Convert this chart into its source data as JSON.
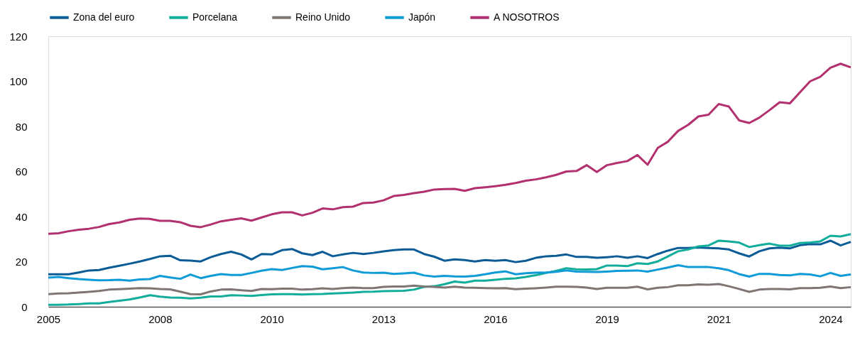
{
  "chart_data": {
    "type": "line",
    "categories": [
      "2005",
      null,
      null,
      null,
      null,
      null,
      null,
      null,
      null,
      null,
      null,
      "2008",
      null,
      null,
      null,
      null,
      null,
      null,
      null,
      null,
      null,
      null,
      "2010",
      null,
      null,
      null,
      null,
      null,
      null,
      null,
      null,
      null,
      null,
      "2013",
      null,
      null,
      null,
      null,
      null,
      null,
      null,
      null,
      null,
      null,
      "2016",
      null,
      null,
      null,
      null,
      null,
      null,
      null,
      null,
      null,
      null,
      "2019",
      null,
      null,
      null,
      null,
      null,
      null,
      null,
      null,
      null,
      null,
      "2021",
      null,
      null,
      null,
      null,
      null,
      null,
      null,
      null,
      null,
      null,
      "2024",
      null,
      null
    ],
    "series": [
      {
        "name": "Zona del euro",
        "color": "#0b5c96",
        "values": [
          14.4,
          14.4,
          14.4,
          15.2,
          16.1,
          16.3,
          17.3,
          18.2,
          19.1,
          20.1,
          21.2,
          22.4,
          22.6,
          20.6,
          20.5,
          20.1,
          22.0,
          23.4,
          24.4,
          23.2,
          21.0,
          23.4,
          23.2,
          25.1,
          25.6,
          23.7,
          22.9,
          24.4,
          22.4,
          23.2,
          23.9,
          23.4,
          23.9,
          24.6,
          25.1,
          25.4,
          25.4,
          23.4,
          22.2,
          20.4,
          21.0,
          20.7,
          20.1,
          20.7,
          20.4,
          20.7,
          19.8,
          20.4,
          21.7,
          22.4,
          22.6,
          23.2,
          22.1,
          22.1,
          21.7,
          22.0,
          22.4,
          21.7,
          22.4,
          21.6,
          23.4,
          24.9,
          26.1,
          26.1,
          26.3,
          26.1,
          25.9,
          25.4,
          23.7,
          22.3,
          24.6,
          25.9,
          26.2,
          25.9,
          27.3,
          27.8,
          27.7,
          29.3,
          27.2,
          28.8
        ]
      },
      {
        "name": "Porcelana",
        "color": "#12ad9b",
        "values": [
          0.9,
          0.9,
          1.0,
          1.2,
          1.5,
          1.5,
          2.1,
          2.7,
          3.2,
          4.1,
          5.1,
          4.5,
          4.1,
          4.0,
          3.7,
          4.0,
          4.6,
          4.6,
          5.1,
          5.0,
          4.8,
          5.2,
          5.5,
          5.6,
          5.6,
          5.4,
          5.6,
          5.7,
          5.9,
          6.1,
          6.3,
          6.6,
          6.7,
          6.9,
          7.0,
          7.1,
          7.6,
          8.8,
          9.1,
          10.0,
          11.2,
          10.7,
          11.6,
          11.6,
          12.0,
          12.4,
          12.6,
          13.2,
          14.0,
          15.0,
          15.9,
          17.1,
          16.6,
          16.5,
          16.7,
          18.3,
          18.3,
          18.0,
          19.3,
          19.0,
          20.1,
          22.3,
          24.6,
          25.4,
          26.8,
          27.2,
          29.3,
          29.0,
          28.5,
          26.5,
          27.3,
          28.0,
          27.1,
          27.1,
          28.3,
          28.5,
          29.0,
          31.5,
          31.2,
          32.2
        ]
      },
      {
        "name": "Reino Unido",
        "color": "#7f7673",
        "values": [
          5.6,
          5.9,
          6.0,
          6.3,
          6.6,
          7.0,
          7.6,
          7.8,
          8.0,
          8.3,
          8.2,
          7.9,
          7.7,
          6.7,
          5.6,
          5.5,
          6.8,
          7.6,
          7.7,
          7.3,
          7.0,
          7.9,
          7.8,
          8.0,
          8.0,
          7.6,
          7.8,
          8.2,
          7.9,
          8.3,
          8.5,
          8.3,
          8.3,
          8.8,
          9.0,
          9.0,
          9.4,
          9.0,
          8.8,
          8.5,
          8.9,
          8.5,
          8.4,
          8.3,
          8.2,
          8.3,
          7.8,
          8.0,
          8.2,
          8.5,
          8.9,
          8.9,
          8.8,
          8.5,
          7.9,
          8.4,
          8.4,
          8.4,
          8.9,
          7.7,
          8.4,
          8.7,
          9.5,
          9.5,
          9.9,
          9.8,
          10.1,
          9.1,
          7.9,
          6.6,
          7.6,
          7.9,
          7.9,
          7.7,
          8.3,
          8.3,
          8.4,
          9.0,
          8.3,
          8.7
        ]
      },
      {
        "name": "Japón",
        "color": "#0f9bd8",
        "values": [
          12.9,
          13.2,
          12.7,
          12.3,
          12.0,
          11.7,
          11.8,
          12.0,
          11.6,
          12.1,
          12.3,
          13.7,
          13.0,
          12.4,
          14.3,
          12.7,
          13.7,
          14.5,
          14.1,
          14.1,
          15.0,
          16.0,
          16.7,
          16.3,
          17.2,
          18.0,
          17.8,
          16.6,
          17.1,
          17.6,
          16.1,
          15.2,
          15.0,
          15.1,
          14.6,
          14.8,
          15.1,
          13.9,
          13.4,
          13.7,
          13.5,
          13.4,
          13.7,
          14.4,
          15.2,
          15.7,
          14.4,
          14.9,
          15.1,
          15.2,
          15.5,
          16.1,
          15.6,
          15.5,
          15.4,
          15.6,
          15.9,
          16.0,
          16.1,
          15.6,
          16.5,
          17.4,
          18.4,
          17.6,
          17.6,
          17.6,
          17.1,
          16.2,
          14.5,
          13.4,
          14.6,
          14.6,
          14.1,
          13.9,
          14.6,
          14.3,
          13.5,
          15.0,
          13.7,
          14.3
        ]
      },
      {
        "name": "A NOSOTROS",
        "color": "#b3306f",
        "values": [
          32.4,
          32.6,
          33.5,
          34.2,
          34.6,
          35.4,
          36.7,
          37.4,
          38.6,
          39.1,
          39.0,
          38.1,
          38.1,
          37.5,
          35.9,
          35.3,
          36.5,
          37.9,
          38.6,
          39.2,
          38.2,
          39.6,
          41.0,
          41.9,
          41.9,
          40.5,
          41.7,
          43.6,
          43.2,
          44.2,
          44.4,
          46.0,
          46.2,
          47.2,
          49.1,
          49.6,
          50.4,
          51.0,
          52.0,
          52.2,
          52.3,
          51.4,
          52.6,
          53.0,
          53.5,
          54.1,
          54.9,
          55.9,
          56.5,
          57.4,
          58.5,
          60.0,
          60.2,
          62.8,
          59.8,
          62.8,
          63.8,
          64.6,
          67.3,
          63.0,
          70.5,
          73.2,
          78.0,
          80.7,
          84.4,
          85.2,
          89.9,
          88.8,
          82.7,
          81.5,
          83.9,
          87.2,
          90.7,
          90.2,
          95.1,
          100.0,
          102.0,
          106.0,
          107.8,
          106.2
        ]
      }
    ],
    "ylim": [
      0,
      120
    ],
    "yticks": [
      0,
      20,
      40,
      60,
      80,
      100,
      120
    ],
    "grid": false,
    "legend": "top left",
    "marker": "none",
    "line_style": "solid"
  }
}
